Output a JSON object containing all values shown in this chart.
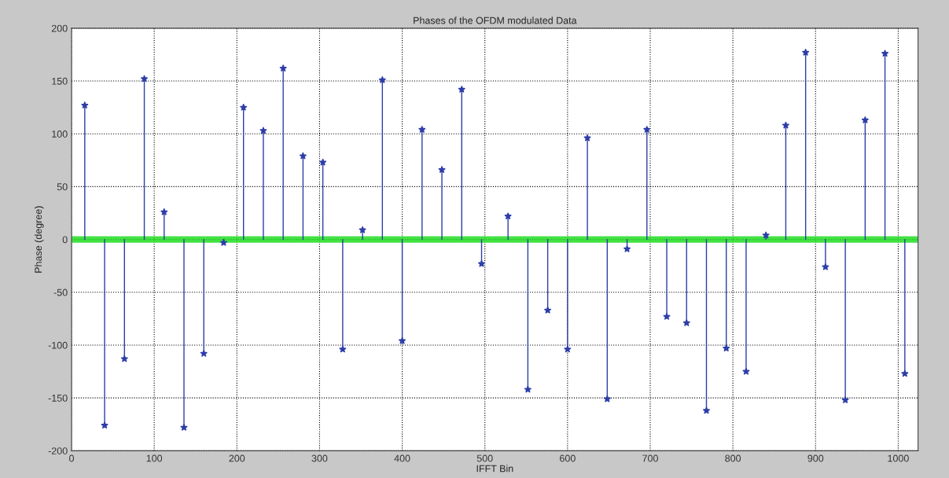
{
  "chart_data": {
    "type": "lollipop",
    "title": "Phases of the OFDM modulated Data",
    "xlabel": "IFFT Bin",
    "ylabel": "Phase (degree)",
    "x": [
      16,
      40,
      64,
      88,
      112,
      136,
      160,
      184,
      208,
      232,
      256,
      280,
      304,
      328,
      352,
      376,
      400,
      424,
      448,
      472,
      496,
      528,
      552,
      576,
      600,
      624,
      648,
      672,
      696,
      720,
      744,
      768,
      792,
      816,
      840,
      864,
      888,
      912,
      936,
      960,
      984,
      1008
    ],
    "series": [
      {
        "color": "#2d3ea8",
        "values": [
          127,
          -176,
          -113,
          152,
          26,
          -178,
          -108,
          -3,
          125,
          103,
          162,
          79,
          73,
          -104,
          9,
          151,
          -96,
          104,
          66,
          142,
          -23,
          22,
          -142,
          -67,
          -104,
          96,
          -151,
          -9,
          104,
          -73,
          -79,
          -162,
          -103,
          -125,
          4,
          108,
          177,
          -26,
          -152,
          113,
          176,
          -127
        ]
      }
    ],
    "xlim": [
      0,
      1024
    ],
    "ylim": [
      -200,
      200
    ],
    "xticks": [
      0,
      100,
      200,
      300,
      400,
      500,
      600,
      700,
      800,
      900,
      1000
    ],
    "yticks": [
      -200,
      -150,
      -100,
      -50,
      0,
      50,
      100,
      150,
      200
    ],
    "ref_lines": [
      {
        "axis": "y",
        "value": 0,
        "color": "#22dd22"
      }
    ],
    "grid": true,
    "marker": "star",
    "line_style": "solid"
  }
}
